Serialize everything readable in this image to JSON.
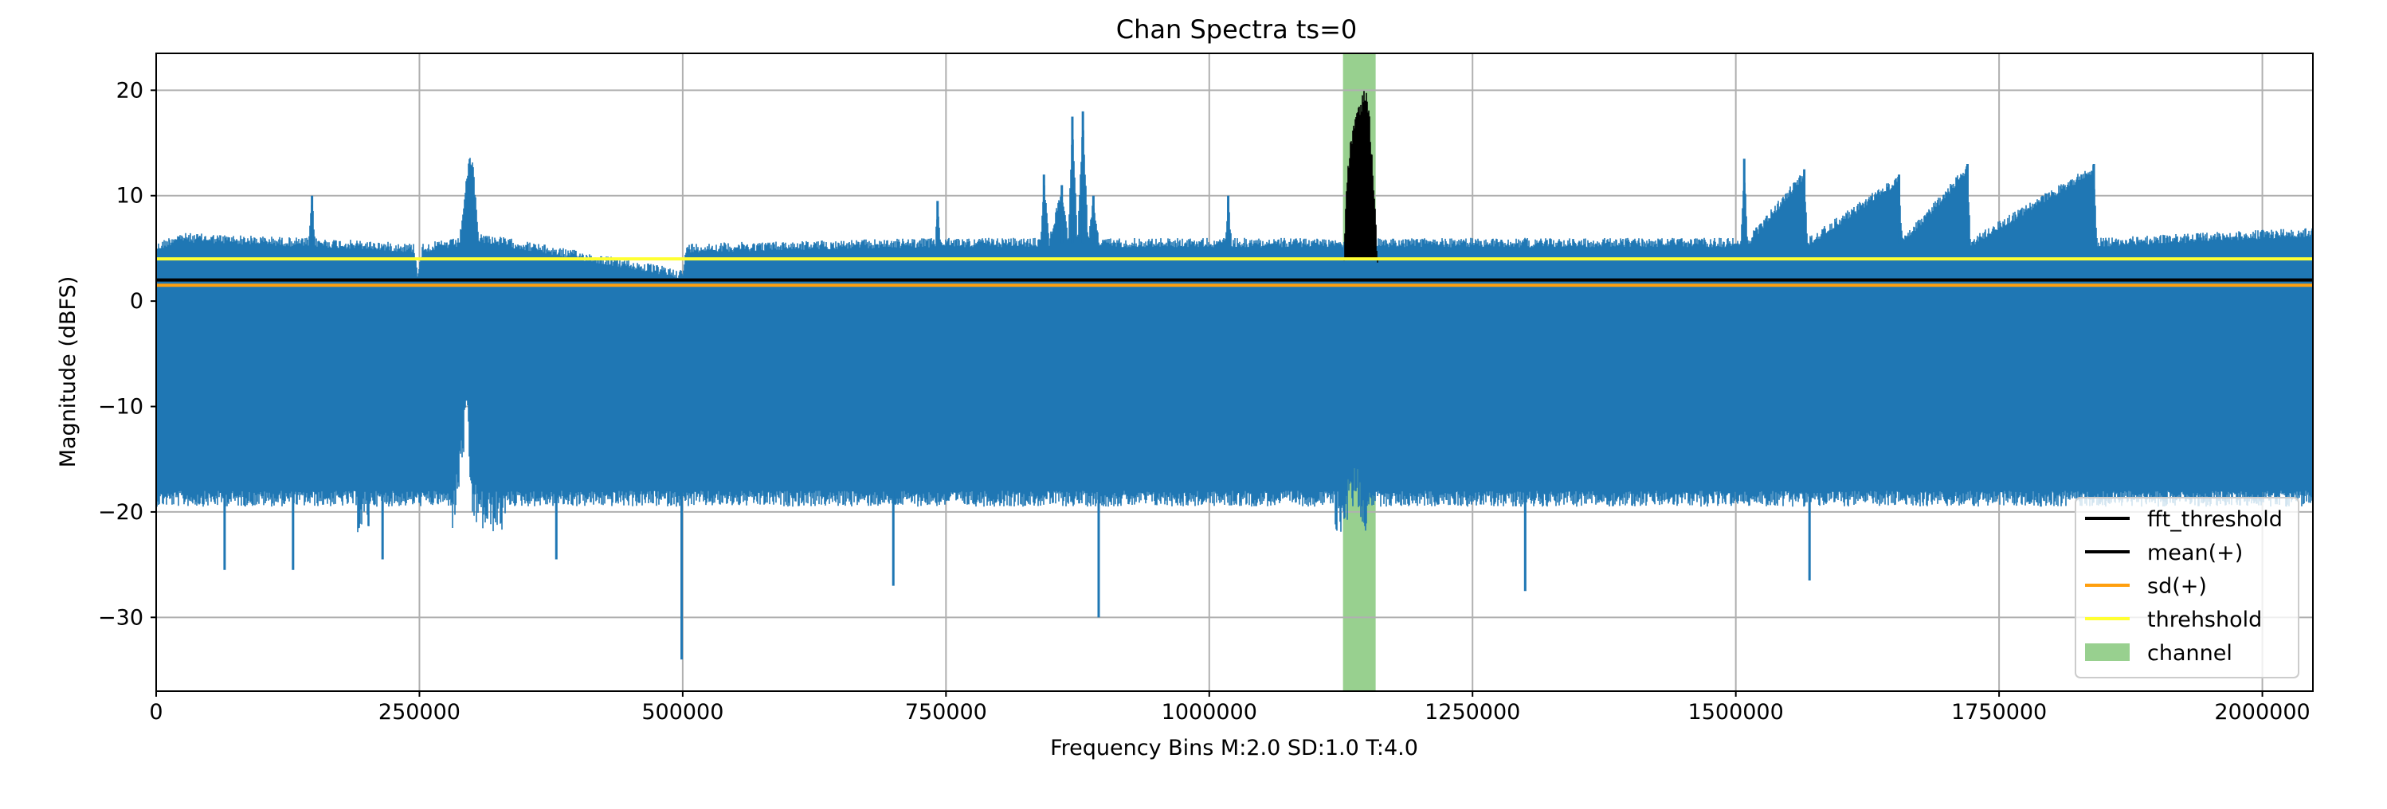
{
  "chart_data": {
    "type": "line",
    "title": "Chan Spectra ts=0",
    "xlabel": "Frequency Bins M:2.0 SD:1.0 T:4.0",
    "ylabel": "Magnitude (dBFS)",
    "xlim": [
      0,
      2048000
    ],
    "ylim": [
      -37,
      23.5
    ],
    "xticks": [
      0,
      250000,
      500000,
      750000,
      1000000,
      1250000,
      1500000,
      1750000,
      2000000
    ],
    "xtick_labels": [
      "0",
      "250000",
      "500000",
      "750000",
      "1000000",
      "1250000",
      "1500000",
      "1750000",
      "2000000"
    ],
    "yticks": [
      20,
      10,
      0,
      -10,
      -20,
      -30
    ],
    "ytick_labels": [
      "20",
      "10",
      "0",
      "−10",
      "−20",
      "−30"
    ],
    "grid": true,
    "legend_position": "lower-right",
    "colors": {
      "spectrum": "#1f77b4",
      "fft_threshold": "#000000",
      "mean": "#000000",
      "sd": "#ff9f0e",
      "threshold": "#ffff33",
      "channel": "#98d08f"
    },
    "series": [
      {
        "name": "spectrum",
        "envelope_upper": [
          [
            0,
            5.5
          ],
          [
            20000,
            6.5
          ],
          [
            145000,
            6
          ],
          [
            148000,
            10
          ],
          [
            151000,
            6
          ],
          [
            245000,
            5.5
          ],
          [
            248000,
            3
          ],
          [
            253000,
            5.5
          ],
          [
            288000,
            6
          ],
          [
            295000,
            12
          ],
          [
            298000,
            14
          ],
          [
            301000,
            13
          ],
          [
            306000,
            6.5
          ],
          [
            500000,
            3
          ],
          [
            504000,
            5.5
          ],
          [
            740000,
            6
          ],
          [
            742000,
            9.5
          ],
          [
            745000,
            6
          ],
          [
            840000,
            6
          ],
          [
            843000,
            12
          ],
          [
            848000,
            6
          ],
          [
            860000,
            11
          ],
          [
            866000,
            6
          ],
          [
            870000,
            17.5
          ],
          [
            875000,
            6
          ],
          [
            880000,
            18
          ],
          [
            885000,
            6
          ],
          [
            890000,
            10
          ],
          [
            895000,
            6
          ],
          [
            1015000,
            6
          ],
          [
            1018000,
            10
          ],
          [
            1021000,
            6
          ],
          [
            1505000,
            6
          ],
          [
            1508000,
            13.5
          ],
          [
            1511000,
            6
          ],
          [
            1565000,
            12.5
          ],
          [
            1568000,
            6
          ],
          [
            1655000,
            12
          ],
          [
            1658000,
            6
          ],
          [
            1720000,
            13
          ],
          [
            1723000,
            6
          ],
          [
            1840000,
            13
          ],
          [
            1843000,
            6
          ],
          [
            2048000,
            7
          ]
        ],
        "envelope_lower": [
          [
            0,
            -22
          ],
          [
            50000,
            -21
          ],
          [
            65000,
            -25.5
          ],
          [
            90000,
            -20
          ],
          [
            130000,
            -25.5
          ],
          [
            200000,
            -19
          ],
          [
            215000,
            -24.5
          ],
          [
            280000,
            -20
          ],
          [
            295000,
            -8.5
          ],
          [
            300000,
            -17
          ],
          [
            380000,
            -24.5
          ],
          [
            440000,
            -22
          ],
          [
            499000,
            -34
          ],
          [
            520000,
            -21
          ],
          [
            590000,
            -22.5
          ],
          [
            700000,
            -27
          ],
          [
            780000,
            -22
          ],
          [
            895000,
            -30
          ],
          [
            960000,
            -23
          ],
          [
            1000000,
            -26
          ],
          [
            1100000,
            -24
          ],
          [
            1140000,
            -15
          ],
          [
            1155000,
            -23
          ],
          [
            1235000,
            -23
          ],
          [
            1300000,
            -27.5
          ],
          [
            1500000,
            -24
          ],
          [
            1570000,
            -26.5
          ],
          [
            1700000,
            -21
          ],
          [
            1800000,
            -23
          ],
          [
            1880000,
            -20
          ],
          [
            1950000,
            -22.5
          ],
          [
            2020000,
            -24
          ],
          [
            2048000,
            -21
          ]
        ],
        "baseline_upper": 5.5,
        "baseline_lower": -18
      },
      {
        "name": "fft_threshold",
        "envelope_upper": [
          [
            1128000,
            4
          ],
          [
            1130000,
            11.5
          ],
          [
            1135000,
            16
          ],
          [
            1140000,
            18.5
          ],
          [
            1145000,
            19.5
          ],
          [
            1148000,
            20.5
          ],
          [
            1152000,
            18
          ],
          [
            1156000,
            12
          ],
          [
            1160000,
            4
          ]
        ],
        "base": 4,
        "x_range": [
          1128000,
          1160000
        ]
      }
    ],
    "hlines": [
      {
        "name": "threhshold",
        "y": 4
      },
      {
        "name": "sd(+)",
        "y": 1.5
      },
      {
        "name": "mean(+)",
        "y": 2
      }
    ],
    "span": {
      "name": "channel",
      "x_range": [
        1127000,
        1158000
      ]
    },
    "legend": [
      "fft_threshold",
      "mean(+)",
      "sd(+)",
      "threhshold",
      "channel"
    ]
  }
}
